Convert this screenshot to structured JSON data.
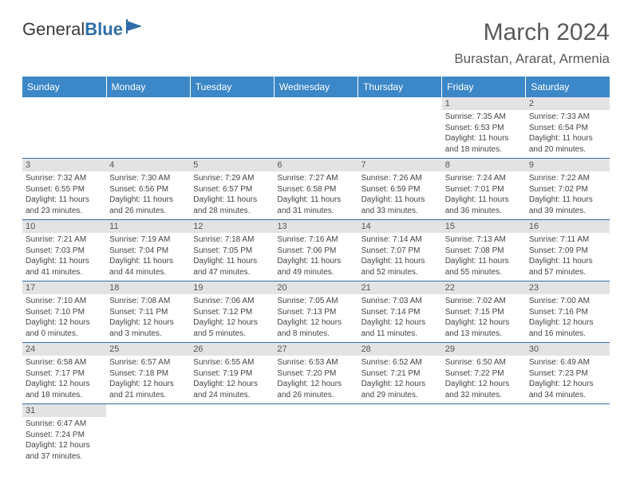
{
  "logo": {
    "part1": "General",
    "part2": "Blue"
  },
  "title": "March 2024",
  "location": "Burastan, Ararat, Armenia",
  "colors": {
    "header_bg": "#3b87c8",
    "header_text": "#ffffff",
    "page_bg": "#ffffff",
    "text": "#5a5a5a",
    "daynum_bg": "#e3e3e3",
    "rule": "#2f6ea8"
  },
  "columns": [
    "Sunday",
    "Monday",
    "Tuesday",
    "Wednesday",
    "Thursday",
    "Friday",
    "Saturday"
  ],
  "weeks": [
    [
      null,
      null,
      null,
      null,
      null,
      {
        "n": "1",
        "sr": "7:35 AM",
        "ss": "6:53 PM",
        "dl": "11 hours and 18 minutes."
      },
      {
        "n": "2",
        "sr": "7:33 AM",
        "ss": "6:54 PM",
        "dl": "11 hours and 20 minutes."
      }
    ],
    [
      {
        "n": "3",
        "sr": "7:32 AM",
        "ss": "6:55 PM",
        "dl": "11 hours and 23 minutes."
      },
      {
        "n": "4",
        "sr": "7:30 AM",
        "ss": "6:56 PM",
        "dl": "11 hours and 26 minutes."
      },
      {
        "n": "5",
        "sr": "7:29 AM",
        "ss": "6:57 PM",
        "dl": "11 hours and 28 minutes."
      },
      {
        "n": "6",
        "sr": "7:27 AM",
        "ss": "6:58 PM",
        "dl": "11 hours and 31 minutes."
      },
      {
        "n": "7",
        "sr": "7:26 AM",
        "ss": "6:59 PM",
        "dl": "11 hours and 33 minutes."
      },
      {
        "n": "8",
        "sr": "7:24 AM",
        "ss": "7:01 PM",
        "dl": "11 hours and 36 minutes."
      },
      {
        "n": "9",
        "sr": "7:22 AM",
        "ss": "7:02 PM",
        "dl": "11 hours and 39 minutes."
      }
    ],
    [
      {
        "n": "10",
        "sr": "7:21 AM",
        "ss": "7:03 PM",
        "dl": "11 hours and 41 minutes."
      },
      {
        "n": "11",
        "sr": "7:19 AM",
        "ss": "7:04 PM",
        "dl": "11 hours and 44 minutes."
      },
      {
        "n": "12",
        "sr": "7:18 AM",
        "ss": "7:05 PM",
        "dl": "11 hours and 47 minutes."
      },
      {
        "n": "13",
        "sr": "7:16 AM",
        "ss": "7:06 PM",
        "dl": "11 hours and 49 minutes."
      },
      {
        "n": "14",
        "sr": "7:14 AM",
        "ss": "7:07 PM",
        "dl": "11 hours and 52 minutes."
      },
      {
        "n": "15",
        "sr": "7:13 AM",
        "ss": "7:08 PM",
        "dl": "11 hours and 55 minutes."
      },
      {
        "n": "16",
        "sr": "7:11 AM",
        "ss": "7:09 PM",
        "dl": "11 hours and 57 minutes."
      }
    ],
    [
      {
        "n": "17",
        "sr": "7:10 AM",
        "ss": "7:10 PM",
        "dl": "12 hours and 0 minutes."
      },
      {
        "n": "18",
        "sr": "7:08 AM",
        "ss": "7:11 PM",
        "dl": "12 hours and 3 minutes."
      },
      {
        "n": "19",
        "sr": "7:06 AM",
        "ss": "7:12 PM",
        "dl": "12 hours and 5 minutes."
      },
      {
        "n": "20",
        "sr": "7:05 AM",
        "ss": "7:13 PM",
        "dl": "12 hours and 8 minutes."
      },
      {
        "n": "21",
        "sr": "7:03 AM",
        "ss": "7:14 PM",
        "dl": "12 hours and 11 minutes."
      },
      {
        "n": "22",
        "sr": "7:02 AM",
        "ss": "7:15 PM",
        "dl": "12 hours and 13 minutes."
      },
      {
        "n": "23",
        "sr": "7:00 AM",
        "ss": "7:16 PM",
        "dl": "12 hours and 16 minutes."
      }
    ],
    [
      {
        "n": "24",
        "sr": "6:58 AM",
        "ss": "7:17 PM",
        "dl": "12 hours and 18 minutes."
      },
      {
        "n": "25",
        "sr": "6:57 AM",
        "ss": "7:18 PM",
        "dl": "12 hours and 21 minutes."
      },
      {
        "n": "26",
        "sr": "6:55 AM",
        "ss": "7:19 PM",
        "dl": "12 hours and 24 minutes."
      },
      {
        "n": "27",
        "sr": "6:53 AM",
        "ss": "7:20 PM",
        "dl": "12 hours and 26 minutes."
      },
      {
        "n": "28",
        "sr": "6:52 AM",
        "ss": "7:21 PM",
        "dl": "12 hours and 29 minutes."
      },
      {
        "n": "29",
        "sr": "6:50 AM",
        "ss": "7:22 PM",
        "dl": "12 hours and 32 minutes."
      },
      {
        "n": "30",
        "sr": "6:49 AM",
        "ss": "7:23 PM",
        "dl": "12 hours and 34 minutes."
      }
    ],
    [
      {
        "n": "31",
        "sr": "6:47 AM",
        "ss": "7:24 PM",
        "dl": "12 hours and 37 minutes."
      },
      null,
      null,
      null,
      null,
      null,
      null
    ]
  ],
  "labels": {
    "sunrise": "Sunrise:",
    "sunset": "Sunset:",
    "daylight": "Daylight:"
  }
}
